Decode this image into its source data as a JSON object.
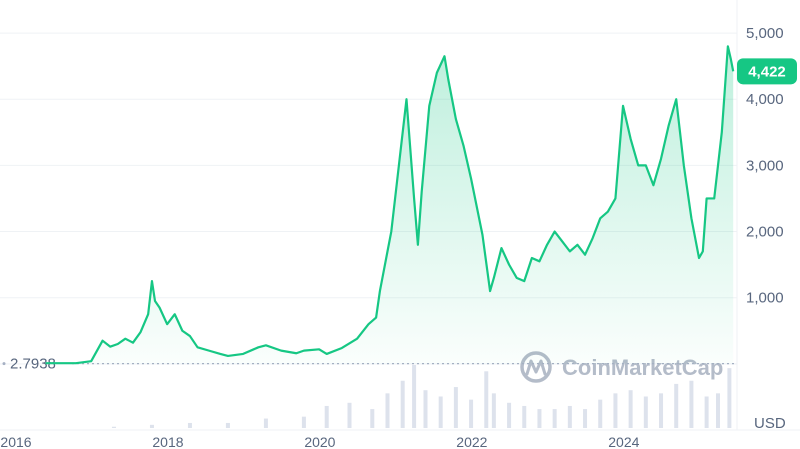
{
  "colors": {
    "line": "#16c784",
    "area_top": "#16c784",
    "grid": "#eff2f5",
    "text": "#58667e",
    "baseline": "#a6b0c3",
    "volume": "#cfd6e4",
    "watermark": "#b4bcc9"
  },
  "watermark": {
    "text": "CoinMarketCap",
    "icon": "coinmarketcap-logo-icon"
  },
  "currency_label": "USD",
  "base_price_label": "2.7938",
  "current_price_badge": "4,422",
  "chart_data": {
    "type": "area",
    "title": "",
    "xlabel": "",
    "ylabel": "",
    "grid": true,
    "y_axis_position": "right",
    "ylim": [
      -1000,
      5500
    ],
    "y_ticks": [
      1000,
      2000,
      3000,
      4000,
      5000
    ],
    "y_tick_labels": [
      "1,000",
      "2,000",
      "3,000",
      "4,000",
      "5,000"
    ],
    "xlim": [
      2016.0,
      2025.7
    ],
    "x_ticks": [
      2016,
      2018,
      2020,
      2022,
      2024
    ],
    "x_tick_labels": [
      "2016",
      "2018",
      "2020",
      "2022",
      "2024"
    ],
    "base_price": 2.7938,
    "current_price": 4422,
    "series": [
      {
        "x": [
          2016.6,
          2016.8,
          2017.0,
          2017.2,
          2017.35,
          2017.45,
          2017.55,
          2017.65,
          2017.75,
          2017.85,
          2017.95,
          2018.0,
          2018.04,
          2018.1,
          2018.2,
          2018.3,
          2018.4,
          2018.5,
          2018.6,
          2018.75,
          2018.9,
          2019.0,
          2019.2,
          2019.4,
          2019.5,
          2019.7,
          2019.9,
          2020.0,
          2020.2,
          2020.3,
          2020.5,
          2020.7,
          2020.85,
          2020.95,
          2021.0,
          2021.1,
          2021.15,
          2021.25,
          2021.35,
          2021.45,
          2021.5,
          2021.55,
          2021.65,
          2021.75,
          2021.85,
          2021.9,
          2022.0,
          2022.1,
          2022.2,
          2022.35,
          2022.45,
          2022.5,
          2022.6,
          2022.7,
          2022.8,
          2022.9,
          2023.0,
          2023.1,
          2023.2,
          2023.3,
          2023.4,
          2023.5,
          2023.6,
          2023.7,
          2023.8,
          2023.9,
          2024.0,
          2024.1,
          2024.2,
          2024.3,
          2024.4,
          2024.5,
          2024.6,
          2024.7,
          2024.8,
          2024.9,
          2024.95,
          2025.0,
          2025.1,
          2025.2,
          2025.25,
          2025.3,
          2025.4,
          2025.5,
          2025.58,
          2025.62,
          2025.65
        ],
        "values": [
          10,
          10,
          10,
          40,
          350,
          260,
          300,
          380,
          320,
          480,
          750,
          1250,
          950,
          850,
          600,
          750,
          500,
          420,
          250,
          200,
          150,
          120,
          150,
          250,
          280,
          200,
          160,
          200,
          220,
          150,
          240,
          380,
          600,
          700,
          1100,
          1700,
          2000,
          3000,
          4000,
          2500,
          1800,
          2600,
          3900,
          4400,
          4650,
          4300,
          3700,
          3300,
          2800,
          1950,
          1100,
          1300,
          1750,
          1500,
          1300,
          1250,
          1600,
          1550,
          1800,
          2000,
          1850,
          1700,
          1800,
          1650,
          1900,
          2200,
          2300,
          2500,
          3900,
          3400,
          3000,
          3000,
          2700,
          3100,
          3600,
          4000,
          3500,
          3000,
          2200,
          1600,
          1700,
          2500,
          2500,
          3500,
          4800,
          4600,
          4422
        ]
      }
    ],
    "volume": {
      "x": [
        2017.5,
        2018.0,
        2018.5,
        2019.0,
        2019.5,
        2020.0,
        2020.3,
        2020.6,
        2020.9,
        2021.1,
        2021.3,
        2021.45,
        2021.6,
        2021.8,
        2022.0,
        2022.2,
        2022.4,
        2022.5,
        2022.7,
        2022.9,
        2023.1,
        2023.3,
        2023.5,
        2023.7,
        2023.9,
        2024.1,
        2024.3,
        2024.5,
        2024.7,
        2024.9,
        2025.1,
        2025.3,
        2025.45,
        2025.6
      ],
      "values": [
        0.02,
        0.05,
        0.08,
        0.08,
        0.15,
        0.18,
        0.35,
        0.4,
        0.3,
        0.55,
        0.75,
        1.0,
        0.6,
        0.5,
        0.65,
        0.45,
        0.9,
        0.55,
        0.4,
        0.35,
        0.3,
        0.3,
        0.35,
        0.3,
        0.45,
        0.55,
        0.6,
        0.5,
        0.55,
        0.7,
        0.75,
        0.5,
        0.55,
        0.95
      ]
    }
  }
}
